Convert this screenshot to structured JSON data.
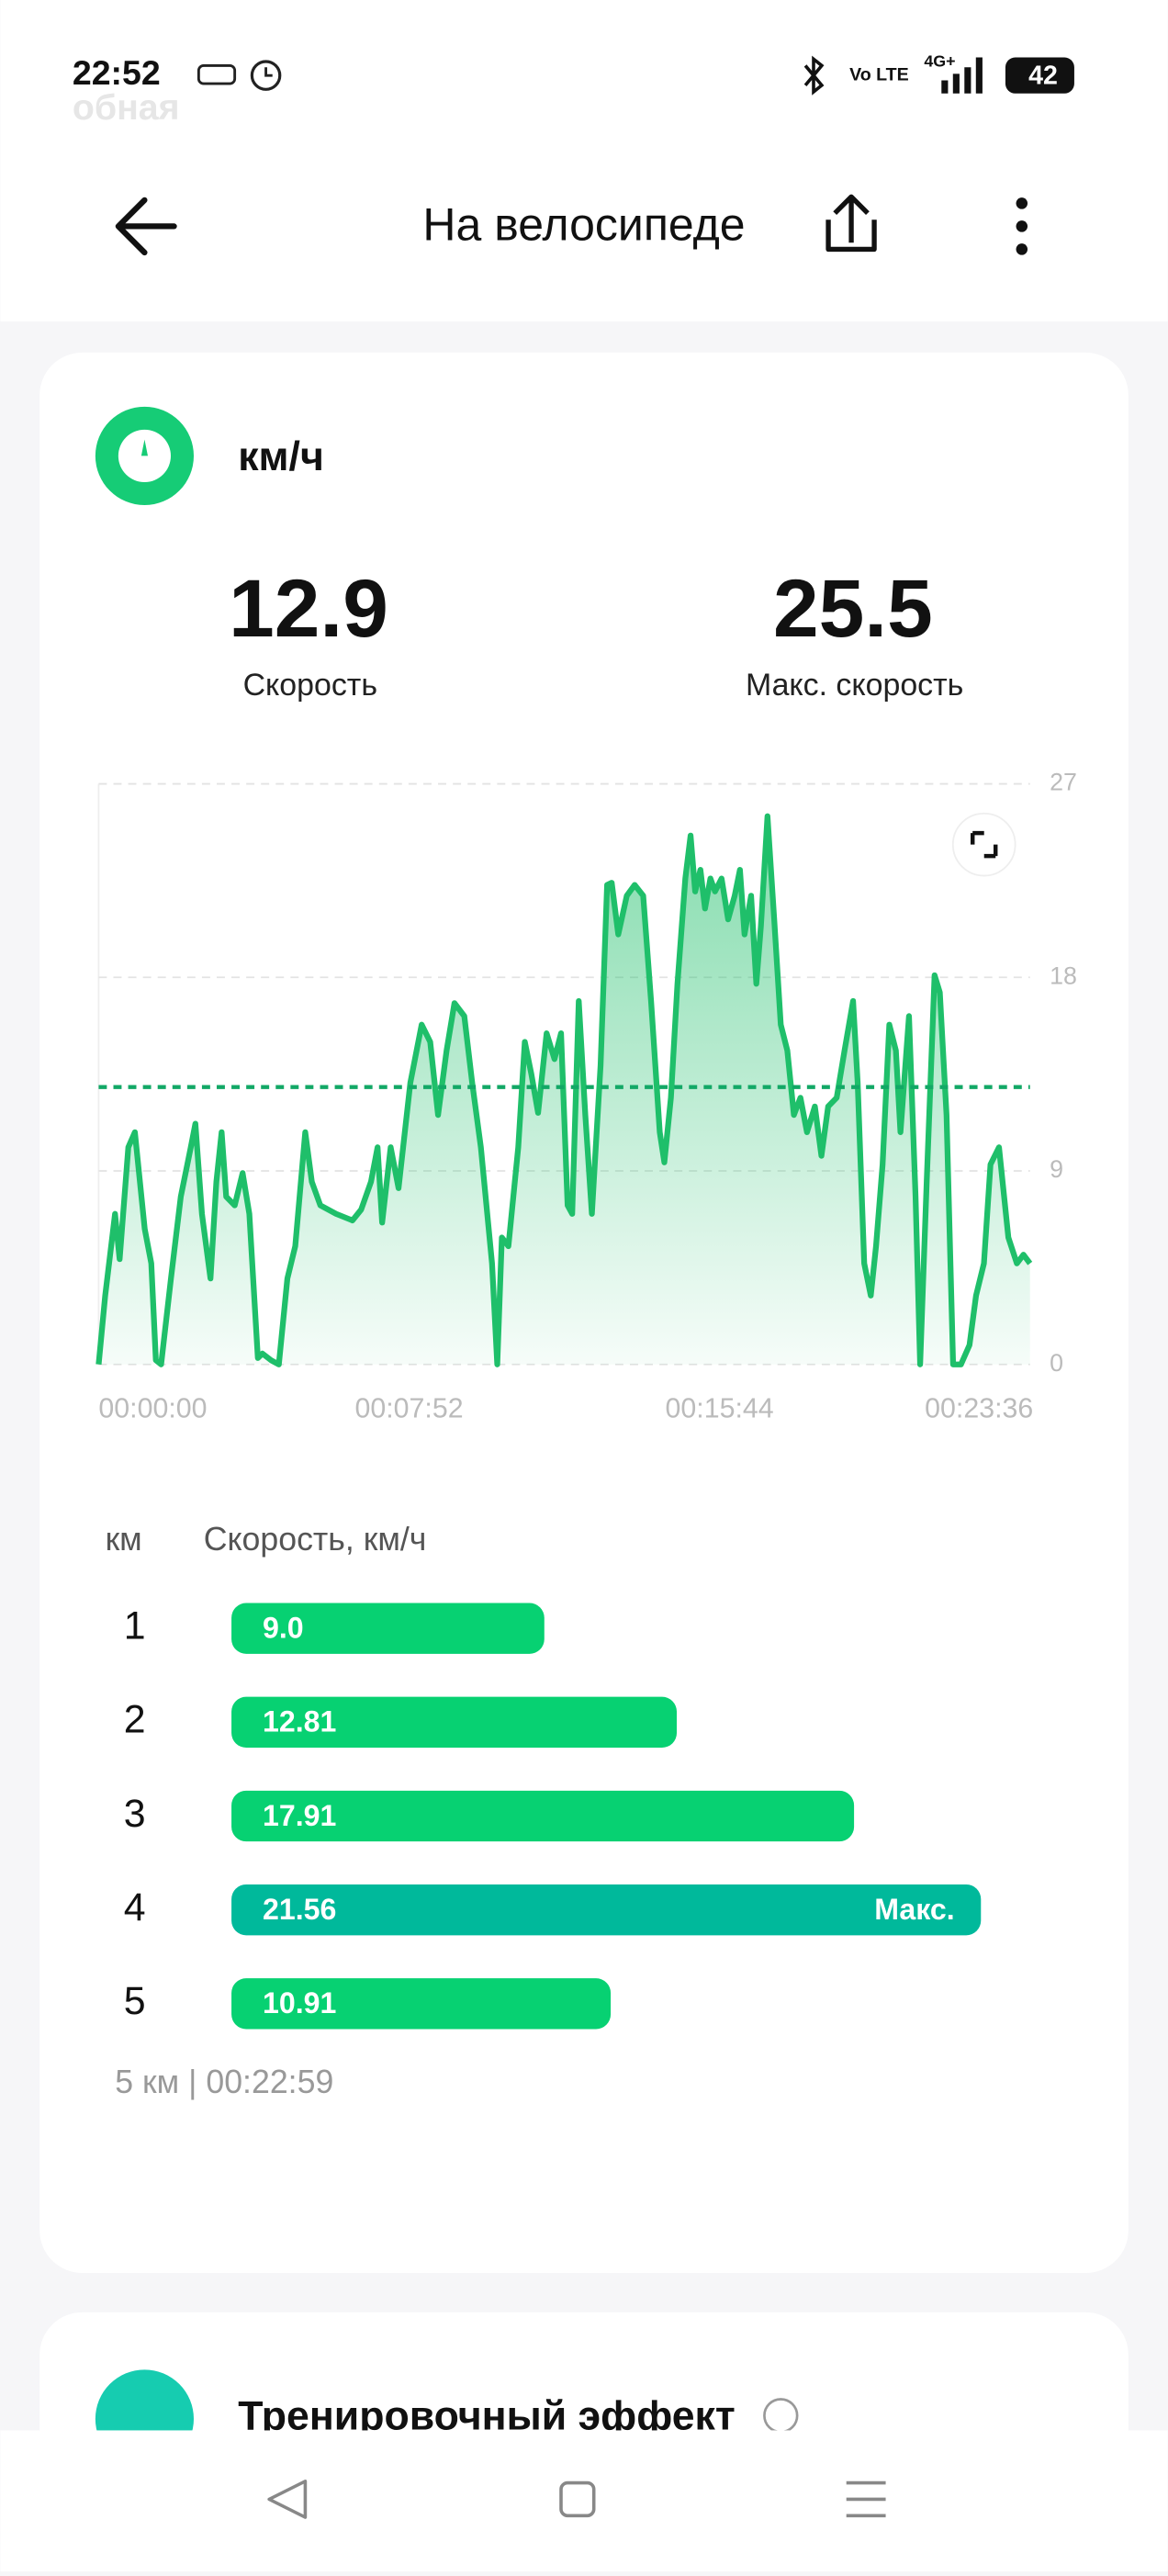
{
  "status_bar": {
    "time": "22:52",
    "network_volte": "Vo LTE",
    "network_type": "4G+",
    "battery": "42",
    "ghost_text": "обная"
  },
  "header": {
    "title": "На велосипеде"
  },
  "speed_card": {
    "unit": "км/ч",
    "speed": 12.9,
    "speed_label": "Скорость",
    "max_speed": 25.5,
    "max_speed_label": "Макс. скорость"
  },
  "chart_data": {
    "type": "line",
    "x": [
      0,
      10,
      25,
      32,
      45,
      55,
      70,
      80,
      87,
      95,
      110,
      125,
      140,
      147,
      157,
      170,
      179,
      187,
      194,
      207,
      219,
      229,
      242,
      249,
      262,
      274,
      287,
      299,
      314,
      324,
      337,
      361,
      386,
      399,
      414,
      424,
      431,
      444,
      456,
      474,
      491,
      504,
      516,
      529,
      541,
      556,
      568,
      581,
      598,
      606,
      613,
      623,
      638,
      648,
      658,
      668,
      681,
      693,
      703,
      713,
      720,
      730,
      740,
      750,
      763,
      773,
      780,
      790,
      803,
      815,
      828,
      840,
      853,
      860,
      870,
      880,
      892,
      900,
      907,
      915,
      922,
      930,
      937,
      947,
      957,
      967,
      975,
      982,
      992,
      1000,
      1007,
      1017,
      1027,
      1037,
      1047,
      1057,
      1067,
      1077,
      1089,
      1099,
      1109,
      1122,
      1134,
      1147,
      1154,
      1164,
      1174,
      1182,
      1192,
      1202,
      1212,
      1219,
      1232,
      1242,
      1249,
      1259,
      1271,
      1279,
      1289,
      1299,
      1311,
      1324,
      1334,
      1346,
      1356,
      1369,
      1383,
      1396,
      1406,
      1416
    ],
    "series": [
      {
        "name": "Скорость",
        "color": "#1fbf6a",
        "values": [
          0,
          3.2,
          7.0,
          4.9,
          10.1,
          10.8,
          6.3,
          4.7,
          0.2,
          0,
          4.0,
          7.8,
          10.1,
          11.2,
          7.0,
          4.0,
          8.5,
          10.8,
          7.8,
          7.4,
          8.9,
          7.0,
          0.3,
          0.5,
          0.2,
          0,
          4.0,
          5.5,
          10.8,
          8.5,
          7.4,
          7.0,
          6.7,
          7.2,
          8.5,
          10.1,
          6.6,
          10.1,
          8.2,
          13.1,
          15.8,
          15.0,
          11.6,
          14.6,
          16.8,
          16.2,
          13.1,
          10.1,
          4.7,
          0,
          5.9,
          5.5,
          10.1,
          15.0,
          13.5,
          11.7,
          15.4,
          14.2,
          15.4,
          7.4,
          7.0,
          16.9,
          11.6,
          7.0,
          13.9,
          22.3,
          22.4,
          20.0,
          21.8,
          22.3,
          21.8,
          16.9,
          10.8,
          9.4,
          12.4,
          17.7,
          22.6,
          24.6,
          22.0,
          23.0,
          21.2,
          22.6,
          22.0,
          22.6,
          20.7,
          21.8,
          23.0,
          20.0,
          21.8,
          17.7,
          20.4,
          25.5,
          20.7,
          15.8,
          14.6,
          11.6,
          12.4,
          10.8,
          12.0,
          9.7,
          12.0,
          12.4,
          14.6,
          16.9,
          13.1,
          4.7,
          3.2,
          5.5,
          9.3,
          15.8,
          14.6,
          10.8,
          16.2,
          7.8,
          0,
          8.5,
          18.1,
          17.3,
          11.6,
          0,
          0,
          0.9,
          3.2,
          4.7,
          9.3,
          10.1,
          5.9,
          4.7,
          5.1,
          4.7
        ]
      }
    ],
    "xlim": [
      0,
      1416
    ],
    "xticks": [
      {
        "value": 0,
        "label": "00:00:00"
      },
      {
        "value": 472,
        "label": "00:07:52"
      },
      {
        "value": 944,
        "label": "00:15:44"
      },
      {
        "value": 1416,
        "label": "00:23:36"
      }
    ],
    "ylim": [
      0,
      27
    ],
    "yticks": [
      0,
      9,
      18,
      27
    ],
    "grid": true
  },
  "splits": {
    "header_km": "км",
    "header_speed": "Скорость, км/ч",
    "categories": [
      1,
      2,
      3,
      4,
      5
    ],
    "values": [
      9.0,
      12.81,
      17.91,
      21.56,
      10.91
    ],
    "value_labels": [
      "9.0",
      "12.81",
      "17.91",
      "21.56",
      "10.91"
    ],
    "color": "#07d172",
    "max_color": "#00b99b",
    "max_label": "Макс.",
    "summary": "5 км | 00:22:59"
  },
  "next_card": {
    "title": "Тренировочный эффект"
  }
}
